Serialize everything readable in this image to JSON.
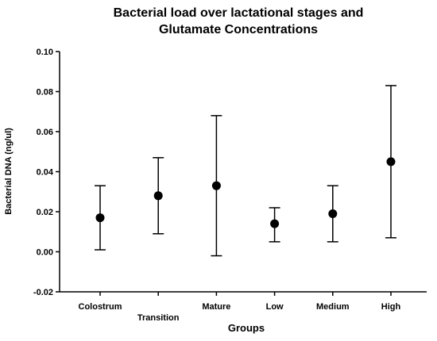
{
  "chart_data": {
    "type": "scatter",
    "title_lines": [
      "Bacterial load over lactational stages and",
      "Glutamate Concentrations"
    ],
    "xlabel": "Groups",
    "ylabel": "Bacterial DNA (ng/ul)",
    "ylim": [
      -0.02,
      0.1
    ],
    "yticks": [
      "-0.02",
      "0.00",
      "0.02",
      "0.04",
      "0.06",
      "0.08",
      "0.10"
    ],
    "grid": false,
    "categories": [
      "Colostrum",
      "Transition",
      "Mature",
      "Low",
      "Medium",
      "High"
    ],
    "means": [
      0.017,
      0.028,
      0.033,
      0.014,
      0.019,
      0.045
    ],
    "upper": [
      0.033,
      0.047,
      0.068,
      0.022,
      0.033,
      0.083
    ],
    "lower": [
      0.001,
      0.009,
      -0.002,
      0.005,
      0.005,
      0.007
    ],
    "colors": {
      "marker": "#000000",
      "axis": "#000000"
    }
  }
}
